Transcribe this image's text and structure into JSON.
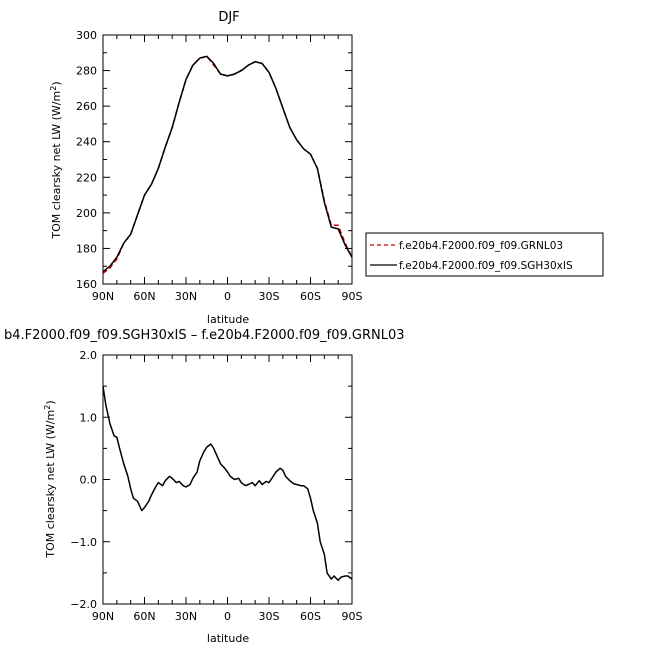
{
  "chart_data": [
    {
      "type": "line",
      "title": "DJF",
      "xlabel": "latitude",
      "ylabel": "TOM clearsky net LW (W/m",
      "ylabel_sup": "2",
      "ylabel_close": ")",
      "xlim": [
        90,
        -90
      ],
      "ylim": [
        160,
        300
      ],
      "x_ticks": [
        {
          "v": 90,
          "label": "90N"
        },
        {
          "v": 60,
          "label": "60N"
        },
        {
          "v": 30,
          "label": "30N"
        },
        {
          "v": 0,
          "label": "0"
        },
        {
          "v": -30,
          "label": "30S"
        },
        {
          "v": -60,
          "label": "60S"
        },
        {
          "v": -90,
          "label": "90S"
        }
      ],
      "y_ticks": [
        {
          "v": 160,
          "label": "160"
        },
        {
          "v": 180,
          "label": "180"
        },
        {
          "v": 200,
          "label": "200"
        },
        {
          "v": 220,
          "label": "220"
        },
        {
          "v": 240,
          "label": "240"
        },
        {
          "v": 260,
          "label": "260"
        },
        {
          "v": 280,
          "label": "280"
        },
        {
          "v": 300,
          "label": "300"
        }
      ],
      "series": [
        {
          "name": "f.e20b4.F2000.f09_f09.GRNL03",
          "color": "#cc0000",
          "dash": "dashed",
          "x": [
            90,
            85,
            80,
            75,
            70,
            65,
            60,
            55,
            50,
            45,
            40,
            35,
            30,
            25,
            20,
            15,
            10,
            5,
            0,
            -5,
            -10,
            -15,
            -20,
            -25,
            -30,
            -35,
            -40,
            -45,
            -50,
            -55,
            -60,
            -65,
            -70,
            -75,
            -80,
            -85,
            -90
          ],
          "y": [
            166,
            169,
            174,
            183,
            188,
            199,
            210,
            216,
            225,
            237,
            248,
            262,
            275,
            283,
            287,
            288,
            283,
            278,
            277,
            278,
            280,
            283,
            285,
            284,
            279,
            270,
            259,
            248,
            241,
            236,
            233,
            225,
            207,
            193,
            193,
            183,
            175
          ]
        },
        {
          "name": "f.e20b4.F2000.f09_f09.SGH30xIS",
          "color": "#000000",
          "dash": "solid",
          "x": [
            90,
            85,
            80,
            75,
            70,
            65,
            60,
            55,
            50,
            45,
            40,
            35,
            30,
            25,
            20,
            15,
            10,
            5,
            0,
            -5,
            -10,
            -15,
            -20,
            -25,
            -30,
            -35,
            -40,
            -45,
            -50,
            -55,
            -60,
            -65,
            -70,
            -75,
            -80,
            -85,
            -90
          ],
          "y": [
            167,
            170,
            175,
            183,
            188,
            199,
            210,
            216,
            225,
            237,
            248,
            262,
            275,
            283,
            287,
            288,
            284,
            278,
            277,
            278,
            280,
            283,
            285,
            284,
            279,
            270,
            259,
            248,
            241,
            236,
            233,
            225,
            206,
            192,
            191,
            182,
            175
          ]
        }
      ],
      "legend_placement": "right"
    },
    {
      "type": "line",
      "title": "b4.F2000.f09_f09.SGH30xIS – f.e20b4.F2000.f09_f09.GRNL03",
      "xlabel": "latitude",
      "ylabel": "TOM clearsky net LW (W/m",
      "ylabel_sup": "2",
      "ylabel_close": ")",
      "xlim": [
        90,
        -90
      ],
      "ylim": [
        -2.0,
        2.0
      ],
      "x_ticks": [
        {
          "v": 90,
          "label": "90N"
        },
        {
          "v": 60,
          "label": "60N"
        },
        {
          "v": 30,
          "label": "30N"
        },
        {
          "v": 0,
          "label": "0"
        },
        {
          "v": -30,
          "label": "30S"
        },
        {
          "v": -60,
          "label": "60S"
        },
        {
          "v": -90,
          "label": "90S"
        }
      ],
      "y_ticks": [
        {
          "v": -2.0,
          "label": "−2.0"
        },
        {
          "v": -1.0,
          "label": "−1.0"
        },
        {
          "v": 0.0,
          "label": "0.0"
        },
        {
          "v": 1.0,
          "label": "1.0"
        },
        {
          "v": 2.0,
          "label": "2.0"
        }
      ],
      "series": [
        {
          "color": "#000000",
          "dash": "solid",
          "x": [
            90,
            88,
            85,
            82,
            80,
            78,
            75,
            72,
            70,
            68,
            65,
            62,
            60,
            57,
            55,
            52,
            50,
            47,
            45,
            42,
            40,
            37,
            35,
            32,
            30,
            27,
            25,
            22,
            20,
            17,
            15,
            12,
            10,
            7,
            5,
            2,
            0,
            -2,
            -5,
            -8,
            -10,
            -13,
            -15,
            -18,
            -20,
            -23,
            -25,
            -28,
            -30,
            -33,
            -35,
            -38,
            -40,
            -42,
            -45,
            -48,
            -50,
            -53,
            -55,
            -58,
            -60,
            -62,
            -65,
            -67,
            -70,
            -72,
            -75,
            -77,
            -80,
            -82,
            -85,
            -87,
            -90
          ],
          "y": [
            1.5,
            1.2,
            0.9,
            0.7,
            0.68,
            0.5,
            0.25,
            0.05,
            -0.15,
            -0.3,
            -0.35,
            -0.5,
            -0.45,
            -0.35,
            -0.25,
            -0.12,
            -0.05,
            -0.1,
            -0.02,
            0.05,
            0.02,
            -0.05,
            -0.03,
            -0.1,
            -0.12,
            -0.08,
            0.02,
            0.12,
            0.3,
            0.45,
            0.52,
            0.57,
            0.5,
            0.35,
            0.25,
            0.18,
            0.12,
            0.05,
            0.0,
            0.02,
            -0.05,
            -0.1,
            -0.08,
            -0.05,
            -0.1,
            -0.02,
            -0.08,
            -0.03,
            -0.05,
            0.05,
            0.12,
            0.18,
            0.15,
            0.05,
            -0.02,
            -0.07,
            -0.08,
            -0.1,
            -0.1,
            -0.15,
            -0.3,
            -0.5,
            -0.7,
            -1.0,
            -1.2,
            -1.5,
            -1.6,
            -1.55,
            -1.62,
            -1.57,
            -1.55,
            -1.55,
            -1.6
          ]
        }
      ]
    }
  ]
}
